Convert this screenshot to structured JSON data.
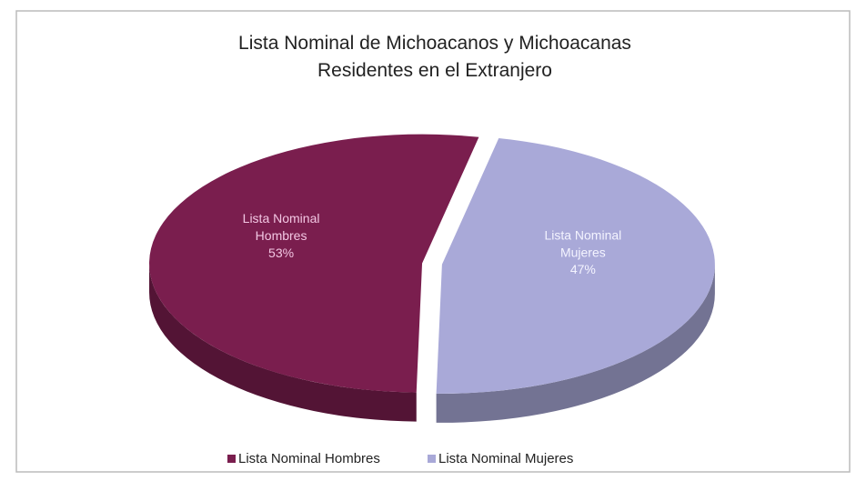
{
  "chart_data": {
    "type": "pie",
    "title": "Lista Nominal de Michoacanos y Michoacanas Residentes en el Extranjero",
    "categories": [
      "Lista Nominal Hombres",
      "Lista Nominal Mujeres"
    ],
    "values": [
      53,
      47
    ],
    "value_labels": [
      "53%",
      "47%"
    ],
    "colors": [
      "#7a1e4e",
      "#a9a9d8"
    ],
    "legend": "bottom"
  }
}
